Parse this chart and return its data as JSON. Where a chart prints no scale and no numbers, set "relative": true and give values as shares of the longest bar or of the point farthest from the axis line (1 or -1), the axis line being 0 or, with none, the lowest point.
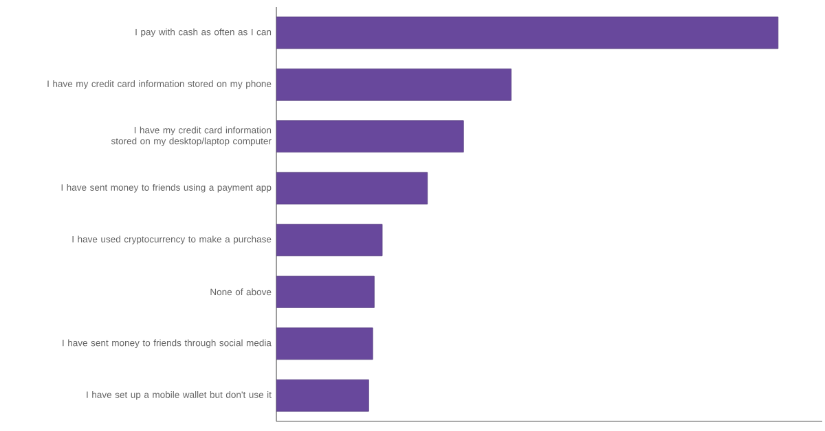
{
  "chart_data": {
    "type": "bar",
    "orientation": "horizontal",
    "relative": true,
    "color": "#68489c",
    "categories": [
      "I pay with cash as often as I can",
      "I have my credit card information stored on my phone",
      "I have my credit card information stored on my desktop/laptop computer",
      "I have sent money to friends using a payment app",
      "I have used cryptocurrency to make a purchase",
      "None of above",
      "I have sent money to friends through social media",
      "I have set up a mobile wallet but don't use it"
    ],
    "values": [
      1,
      0.468,
      0.373,
      0.301,
      0.211,
      0.195,
      0.192,
      0.184
    ]
  }
}
